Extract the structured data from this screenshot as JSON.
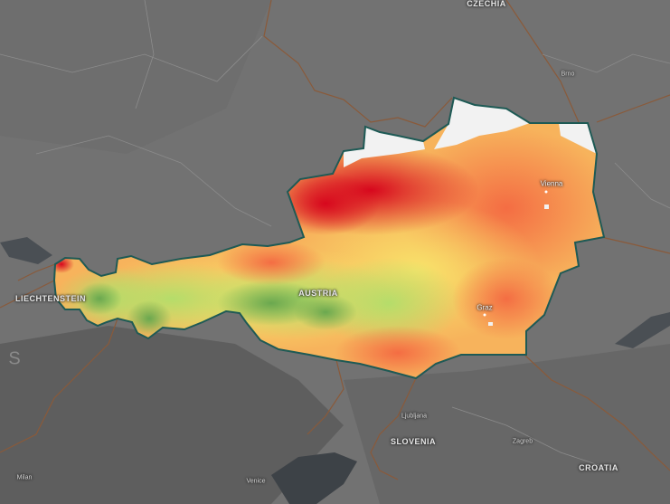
{
  "map": {
    "colors": {
      "background": "#707070",
      "terrain_dark": "#5d5d5d",
      "water": "#3d4247",
      "border": "#8a5a3a",
      "outline": "#1e5a55",
      "no_data": "#f2f2f2",
      "scale_high": "#d7191c",
      "scale_mid": "#fdae61",
      "scale_low": "#a6d96a",
      "scale_lowest": "#5a9e3a"
    },
    "labels": {
      "czechia": "CZECHIA",
      "brno": "Brno",
      "vienna": "Vienna",
      "austria": "AUSTRIA",
      "graz": "Graz",
      "liechtenstein": "LIECHTENSTEIN",
      "ljubljana": "Ljubljana",
      "slovenia": "SLOVENIA",
      "zagreb": "Zagreb",
      "croatia": "CROATIA",
      "milan": "Milan",
      "venice": "Venice",
      "switzerland_partial": "S"
    }
  }
}
